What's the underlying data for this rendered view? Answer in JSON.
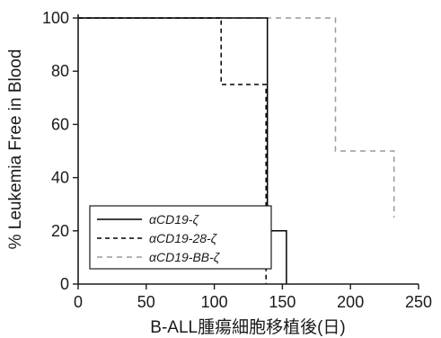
{
  "chart_data": {
    "type": "line",
    "step": true,
    "xlabel": "B-ALL腫瘍細胞移植後(日)",
    "ylabel": "% Leukemia Free in Blood",
    "xlim": [
      0,
      250
    ],
    "ylim": [
      0,
      100
    ],
    "xticks": [
      0,
      50,
      100,
      150,
      200,
      250
    ],
    "yticks": [
      0,
      20,
      40,
      60,
      80,
      100
    ],
    "x_tick_labels": [
      "0",
      "50",
      "100",
      "150",
      "200",
      "250"
    ],
    "y_tick_labels": [
      "0",
      "20",
      "40",
      "60",
      "80",
      "100"
    ],
    "grid": false,
    "legend_position": "bottom-left",
    "series": [
      {
        "name": "αCD19-ζ",
        "style": "solid",
        "color": "#000000",
        "x": [
          0,
          139,
          139,
          153,
          153
        ],
        "y": [
          100,
          100,
          20,
          20,
          0
        ]
      },
      {
        "name": "αCD19-28-ζ",
        "style": "dashed",
        "color": "#000000",
        "x": [
          0,
          105,
          105,
          138,
          138
        ],
        "y": [
          100,
          100,
          75,
          75,
          0
        ]
      },
      {
        "name": "αCD19-BB-ζ",
        "style": "dashed",
        "color": "#9a9a9a",
        "x": [
          0,
          189,
          189,
          232,
          232
        ],
        "y": [
          100,
          100,
          50,
          50,
          25
        ]
      }
    ]
  }
}
